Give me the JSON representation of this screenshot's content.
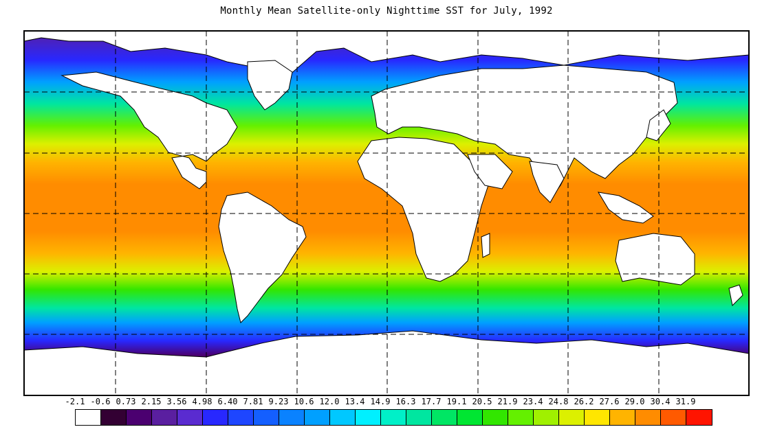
{
  "title": "Monthly Mean Satellite-only Nighttime SST for July, 1992",
  "legend": {
    "labels": [
      "-2.1",
      "-0.6",
      "0.73",
      "2.15",
      "3.56",
      "4.98",
      "6.40",
      "7.81",
      "9.23",
      "10.6",
      "12.0",
      "13.4",
      "14.9",
      "16.3",
      "17.7",
      "19.1",
      "20.5",
      "21.9",
      "23.4",
      "24.8",
      "26.2",
      "27.6",
      "29.0",
      "30.4",
      "31.9"
    ],
    "colors": [
      "#ffffff",
      "#330033",
      "#4b0070",
      "#5a1fa0",
      "#5a2bd0",
      "#2828ff",
      "#1e46ff",
      "#145fff",
      "#0a82ff",
      "#00a0ff",
      "#00c8ff",
      "#00f0ff",
      "#00f0c8",
      "#00e6a0",
      "#00e664",
      "#00e632",
      "#32e600",
      "#64f000",
      "#a0f000",
      "#dcf000",
      "#ffe600",
      "#ffb400",
      "#ff8c00",
      "#ff5a00",
      "#ff1400"
    ]
  },
  "map": {
    "colors": {
      "ice": "#3a0050",
      "deep_cold": "#5a1fa0",
      "cold": "#2828ff",
      "cool": "#00a0ff",
      "mild": "#00f0c8",
      "temperate": "#32e600",
      "subtropical": "#dcf000",
      "warm": "#ffb400",
      "tropical": "#ff8c00",
      "hot": "#ff5a00",
      "land": "#ffffff",
      "coast": "#000000",
      "grid": "#000000"
    }
  }
}
